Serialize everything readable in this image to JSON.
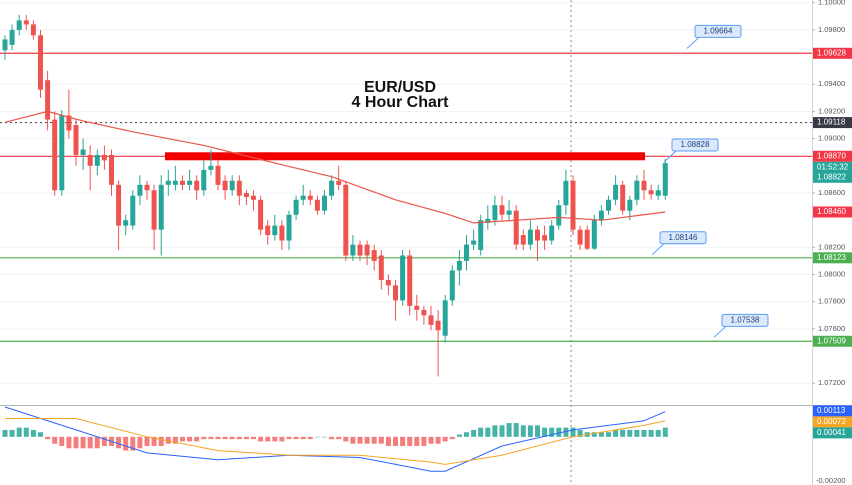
{
  "chart_data": {
    "type": "candlestick",
    "title": "EUR/USD",
    "subtitle": "4 Hour Chart",
    "ylim": [
      1.0704,
      1.1002
    ],
    "yticks": [
      {
        "value": 1.1,
        "label": "1.10000"
      },
      {
        "value": 1.098,
        "label": "1.09800"
      },
      {
        "value": 1.094,
        "label": "1.09400"
      },
      {
        "value": 1.092,
        "label": "1.09200"
      },
      {
        "value": 1.09,
        "label": "1.09000"
      },
      {
        "value": 1.086,
        "label": "1.08600"
      },
      {
        "value": 1.082,
        "label": "1.08200"
      },
      {
        "value": 1.08,
        "label": "1.08000"
      },
      {
        "value": 1.078,
        "label": "1.07800"
      },
      {
        "value": 1.076,
        "label": "1.07600"
      },
      {
        "value": 1.072,
        "label": "1.07200"
      }
    ],
    "grid": true,
    "up_color": "#26a69a",
    "down_color": "#ef5350",
    "candles": [
      [
        1.0965,
        1.0976,
        1.0958,
        1.0973
      ],
      [
        1.0969,
        1.0984,
        1.0965,
        1.098
      ],
      [
        1.098,
        1.0991,
        1.0976,
        1.0987
      ],
      [
        1.0987,
        1.0991,
        1.098,
        1.0984
      ],
      [
        1.0984,
        1.0987,
        1.0973,
        1.0976
      ],
      [
        1.0976,
        1.098,
        1.093,
        1.0936
      ],
      [
        1.0943,
        1.095,
        1.0906,
        1.0914
      ],
      [
        1.0914,
        1.092,
        1.0858,
        1.0862
      ],
      [
        1.0862,
        1.0921,
        1.0858,
        1.0917
      ],
      [
        1.0917,
        1.0936,
        1.09,
        1.0906
      ],
      [
        1.091,
        1.0914,
        1.088,
        1.0888
      ],
      [
        1.0888,
        1.09,
        1.0877,
        1.0892
      ],
      [
        1.0888,
        1.0895,
        1.0862,
        1.088
      ],
      [
        1.088,
        1.0892,
        1.0873,
        1.0888
      ],
      [
        1.0888,
        1.0895,
        1.0877,
        1.0884
      ],
      [
        1.0888,
        1.0892,
        1.0858,
        1.0866
      ],
      [
        1.0866,
        1.0869,
        1.0818,
        1.0836
      ],
      [
        1.0836,
        1.0844,
        1.0829,
        1.084
      ],
      [
        1.0836,
        1.0862,
        1.0833,
        1.0858
      ],
      [
        1.0858,
        1.0873,
        1.0851,
        1.0866
      ],
      [
        1.0866,
        1.0869,
        1.0855,
        1.0862
      ],
      [
        1.0862,
        1.0866,
        1.0818,
        1.0833
      ],
      [
        1.0833,
        1.0873,
        1.0814,
        1.0866
      ],
      [
        1.0866,
        1.0877,
        1.0858,
        1.0869
      ],
      [
        1.0866,
        1.088,
        1.0862,
        1.0869
      ],
      [
        1.0869,
        1.0873,
        1.0862,
        1.0866
      ],
      [
        1.0866,
        1.0877,
        1.0862,
        1.0869
      ],
      [
        1.0869,
        1.0873,
        1.0855,
        1.0862
      ],
      [
        1.0862,
        1.0884,
        1.0858,
        1.0877
      ],
      [
        1.0877,
        1.0892,
        1.0873,
        1.088
      ],
      [
        1.088,
        1.0884,
        1.0862,
        1.0866
      ],
      [
        1.0869,
        1.0873,
        1.0855,
        1.0862
      ],
      [
        1.0862,
        1.0873,
        1.0858,
        1.0869
      ],
      [
        1.0869,
        1.0873,
        1.0851,
        1.0858
      ],
      [
        1.086,
        1.0862,
        1.0851,
        1.0857
      ],
      [
        1.0858,
        1.0862,
        1.0847,
        1.0855
      ],
      [
        1.0855,
        1.0858,
        1.0829,
        1.0833
      ],
      [
        1.0836,
        1.084,
        1.0822,
        1.0829
      ],
      [
        1.0829,
        1.0844,
        1.0825,
        1.0836
      ],
      [
        1.0836,
        1.084,
        1.0818,
        1.0825
      ],
      [
        1.0825,
        1.0847,
        1.0818,
        1.0844
      ],
      [
        1.0844,
        1.0858,
        1.084,
        1.0855
      ],
      [
        1.0855,
        1.0866,
        1.0851,
        1.0858
      ],
      [
        1.0858,
        1.0862,
        1.0851,
        1.0855
      ],
      [
        1.0855,
        1.0858,
        1.0844,
        1.0847
      ],
      [
        1.0847,
        1.0862,
        1.0844,
        1.0858
      ],
      [
        1.0858,
        1.0873,
        1.0855,
        1.0869
      ],
      [
        1.0869,
        1.088,
        1.0862,
        1.0866
      ],
      [
        1.0866,
        1.0869,
        1.081,
        1.0814
      ],
      [
        1.0814,
        1.0829,
        1.081,
        1.0822
      ],
      [
        1.0822,
        1.0825,
        1.081,
        1.0814
      ],
      [
        1.0822,
        1.0825,
        1.0807,
        1.0814
      ],
      [
        1.0818,
        1.0822,
        1.0803,
        1.081
      ],
      [
        1.0814,
        1.0818,
        1.0789,
        1.0796
      ],
      [
        1.0796,
        1.08,
        1.0785,
        1.0792
      ],
      [
        1.0792,
        1.0796,
        1.0766,
        1.0781
      ],
      [
        1.0781,
        1.0818,
        1.0777,
        1.0814
      ],
      [
        1.0814,
        1.0818,
        1.077,
        1.0777
      ],
      [
        1.0777,
        1.0785,
        1.0766,
        1.0774
      ],
      [
        1.0774,
        1.0777,
        1.0763,
        1.077
      ],
      [
        1.077,
        1.0777,
        1.0759,
        1.0763
      ],
      [
        1.0766,
        1.0774,
        1.0725,
        1.0759
      ],
      [
        1.0755,
        1.0785,
        1.075,
        1.0781
      ],
      [
        1.0781,
        1.0807,
        1.0777,
        1.0803
      ],
      [
        1.0803,
        1.0818,
        1.0792,
        1.081
      ],
      [
        1.081,
        1.0829,
        1.0803,
        1.0822
      ],
      [
        1.0822,
        1.0833,
        1.0818,
        1.0825
      ],
      [
        1.0818,
        1.0844,
        1.0814,
        1.084
      ],
      [
        1.0838,
        1.0851,
        1.0833,
        1.0841
      ],
      [
        1.084,
        1.0858,
        1.0836,
        1.0851
      ],
      [
        1.0851,
        1.0858,
        1.084,
        1.0844
      ],
      [
        1.0844,
        1.0855,
        1.084,
        1.0847
      ],
      [
        1.0847,
        1.0851,
        1.0818,
        1.0822
      ],
      [
        1.0829,
        1.0833,
        1.0818,
        1.0822
      ],
      [
        1.0822,
        1.084,
        1.0818,
        1.0833
      ],
      [
        1.0833,
        1.0836,
        1.081,
        1.0825
      ],
      [
        1.0829,
        1.0836,
        1.0818,
        1.0825
      ],
      [
        1.0825,
        1.084,
        1.0822,
        1.0836
      ],
      [
        1.0836,
        1.0855,
        1.0833,
        1.0851
      ],
      [
        1.0851,
        1.0877,
        1.0844,
        1.0869
      ],
      [
        1.0869,
        1.0873,
        1.0829,
        1.0833
      ],
      [
        1.0833,
        1.0836,
        1.0818,
        1.0822
      ],
      [
        1.0833,
        1.0836,
        1.0818,
        1.0819
      ],
      [
        1.0819,
        1.0844,
        1.0818,
        1.084
      ],
      [
        1.084,
        1.0851,
        1.0836,
        1.0847
      ],
      [
        1.0847,
        1.0858,
        1.0844,
        1.0855
      ],
      [
        1.0855,
        1.0873,
        1.0851,
        1.0866
      ],
      [
        1.0866,
        1.0869,
        1.0844,
        1.0847
      ],
      [
        1.0847,
        1.0858,
        1.084,
        1.0855
      ],
      [
        1.0855,
        1.0873,
        1.0851,
        1.0869
      ],
      [
        1.0869,
        1.0877,
        1.0855,
        1.0862
      ],
      [
        1.0862,
        1.0866,
        1.0855,
        1.0859
      ],
      [
        1.0858,
        1.0866,
        1.0855,
        1.0862
      ],
      [
        1.0858,
        1.0885,
        1.0855,
        1.0882
      ]
    ],
    "ma": {
      "color": "#e8564a",
      "index": [
        0,
        6,
        11,
        18,
        28,
        38,
        46,
        55,
        62,
        66,
        72,
        78,
        84,
        93
      ],
      "values": [
        1.0912,
        1.092,
        1.0913,
        1.0905,
        1.0895,
        1.0882,
        1.0872,
        1.0855,
        1.0845,
        1.0838,
        1.084,
        1.0842,
        1.084,
        1.0846
      ]
    },
    "levels": [
      {
        "value": 1.09628,
        "label": "1.09628",
        "color": "#f23645",
        "style": "solid"
      },
      {
        "value": 1.0887,
        "label": "1.08870",
        "color": "#f23645",
        "style": "solid"
      },
      {
        "value": 1.08123,
        "label": "1.08123",
        "color": "#4caf50",
        "style": "solid"
      },
      {
        "value": 1.07509,
        "label": "1.07509",
        "color": "#4caf50",
        "style": "solid"
      },
      {
        "value": 1.09118,
        "label": "1.09118",
        "color": "#363a45",
        "style": "dotted"
      }
    ],
    "ma_tag": {
      "value": 1.0846,
      "label": "1.08460",
      "color": "#f23645"
    },
    "last_price": {
      "value": 1.08822,
      "label": "1.08822",
      "color": "#26a69a"
    },
    "countdown": "01:52:32",
    "callouts": [
      {
        "value": 1.09664,
        "label": "1.09664"
      },
      {
        "value": 1.08828,
        "label": "1.08828"
      },
      {
        "value": 1.08146,
        "label": "1.08146"
      },
      {
        "value": 1.07538,
        "label": "1.07538"
      }
    ],
    "macd": {
      "ylim": [
        -0.0021,
        0.0013
      ],
      "yticks": [
        {
          "value": -0.002,
          "label": "-0.00200"
        }
      ],
      "histogram": [
        0.0003,
        0.0003,
        0.0004,
        0.0004,
        0.0003,
        0.0002,
        -0.0001,
        -0.0003,
        -0.0004,
        -0.0005,
        -0.0005,
        -0.0005,
        -0.0005,
        -0.0005,
        -0.0004,
        -0.0004,
        -0.0005,
        -0.0006,
        -0.0006,
        -0.0005,
        -0.0004,
        -0.0004,
        -0.0004,
        -0.0003,
        -0.0003,
        -0.0002,
        -0.0002,
        -0.0002,
        -0.0001,
        -0.0001,
        -0.0001,
        -0.0001,
        -0.0001,
        -0.0001,
        -0.0001,
        -0.0001,
        -0.0002,
        -0.0002,
        -0.0002,
        -0.0002,
        -0.0001,
        -0.0001,
        -0.0001,
        -0.0001,
        0,
        0,
        -0.0001,
        -0.0001,
        -0.0002,
        -0.0003,
        -0.0003,
        -0.0003,
        -0.0003,
        -0.0003,
        -0.0004,
        -0.0004,
        -0.0004,
        -0.0004,
        -0.0004,
        -0.0004,
        -0.0003,
        -0.0003,
        -0.0002,
        -0.0001,
        0.0001,
        0.0002,
        0.0003,
        0.0004,
        0.0004,
        0.0005,
        0.0005,
        0.0006,
        0.0006,
        0.0005,
        0.0005,
        0.0005,
        0.0004,
        0.0004,
        0.0004,
        0.0004,
        0.0004,
        0.0003,
        0.0002,
        0.0002,
        0.0002,
        0.0002,
        0.0003,
        0.0003,
        0.0003,
        0.0003,
        0.0003,
        0.0003,
        0.0003,
        0.0004
      ],
      "index": [
        0,
        10,
        20,
        30,
        40,
        50,
        60,
        62,
        70,
        80,
        90,
        93
      ],
      "macd_line": {
        "color": "#2962ff",
        "values": [
          0.0013,
          0.0003,
          -0.0007,
          -0.001,
          -0.0008,
          -0.0009,
          -0.0015,
          -0.0015,
          -0.0004,
          0.0003,
          0.0007,
          0.0011
        ]
      },
      "signal_line": {
        "color": "#f5a623",
        "values": [
          0.0008,
          0.0008,
          0,
          -0.0006,
          -0.0008,
          -0.0008,
          -0.0011,
          -0.0012,
          -0.0008,
          0,
          0.0005,
          0.0007
        ]
      },
      "tags": [
        {
          "value": 0.00113,
          "label": "0.00113",
          "color": "#2962ff"
        },
        {
          "value": 0.00072,
          "label": "0.00072",
          "color": "#f5a623"
        },
        {
          "value": 0.00041,
          "label": "0.00041",
          "color": "#26a69a"
        }
      ]
    }
  }
}
